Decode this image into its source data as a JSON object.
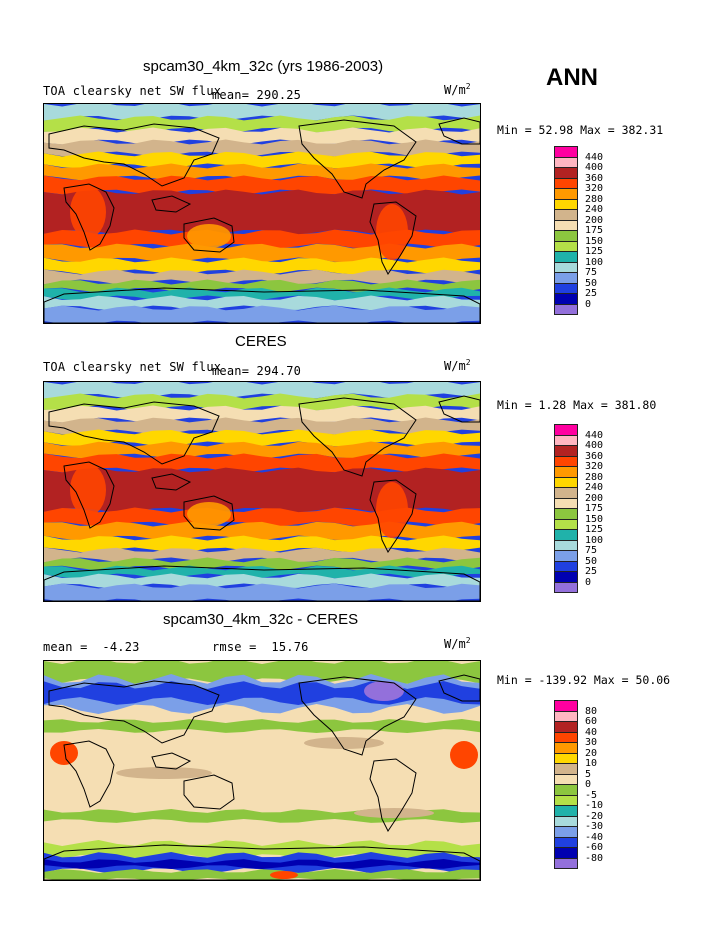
{
  "season": "ANN",
  "units_prefix": "W/m",
  "units_exp": "2",
  "panels": [
    {
      "id": "model",
      "title": "spcam30_4km_32c (yrs 1986-2003)",
      "variable": "TOA clearsky net SW flux",
      "mean_text": "mean= 290.25",
      "minmax_text": "Min =  52.98 Max = 382.31",
      "levels": [
        "440",
        "400",
        "360",
        "320",
        "280",
        "240",
        "200",
        "175",
        "150",
        "125",
        "100",
        "75",
        "50",
        "25",
        "0"
      ],
      "palette": [
        "#ff00a0",
        "#ffb6c1",
        "#b22222",
        "#ff4500",
        "#ff9900",
        "#ffd700",
        "#d2b48c",
        "#f5deb3",
        "#8cc63f",
        "#b4e048",
        "#20b2aa",
        "#a8dadc",
        "#7b9fe8",
        "#2040e0",
        "#0000b0",
        "#9370db"
      ]
    },
    {
      "id": "obs",
      "title": "CERES",
      "variable": "TOA clearsky net SW flux",
      "mean_text": "mean= 294.70",
      "minmax_text": "Min =   1.28 Max = 381.80",
      "levels": [
        "440",
        "400",
        "360",
        "320",
        "280",
        "240",
        "200",
        "175",
        "150",
        "125",
        "100",
        "75",
        "50",
        "25",
        "0"
      ],
      "palette": [
        "#ff00a0",
        "#ffb6c1",
        "#b22222",
        "#ff4500",
        "#ff9900",
        "#ffd700",
        "#d2b48c",
        "#f5deb3",
        "#8cc63f",
        "#b4e048",
        "#20b2aa",
        "#a8dadc",
        "#7b9fe8",
        "#2040e0",
        "#0000b0",
        "#9370db"
      ]
    },
    {
      "id": "diff",
      "title": "spcam30_4km_32c - CERES",
      "mean_label": "mean =",
      "mean_value": "-4.23",
      "rmse_label": "rmse =",
      "rmse_value": "15.76",
      "minmax_text": "Min = -139.92 Max =  50.06",
      "levels": [
        "80",
        "60",
        "40",
        "30",
        "20",
        "10",
        "5",
        "0",
        "-5",
        "-10",
        "-20",
        "-30",
        "-40",
        "-60",
        "-80"
      ],
      "palette": [
        "#ff00a0",
        "#ffb6c1",
        "#b22222",
        "#ff4500",
        "#ff9900",
        "#ffd700",
        "#d2b48c",
        "#f5deb3",
        "#8cc63f",
        "#b4e048",
        "#20b2aa",
        "#a8dadc",
        "#7b9fe8",
        "#2040e0",
        "#0000b0",
        "#9370db"
      ]
    }
  ]
}
